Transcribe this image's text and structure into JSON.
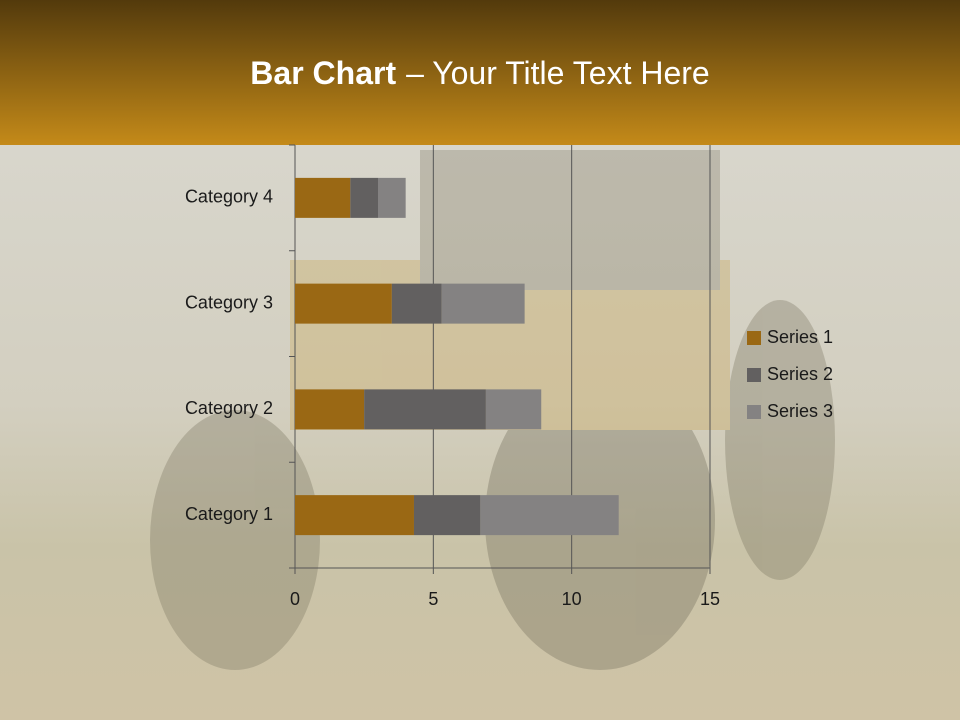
{
  "chart_data": {
    "type": "stacked_barh",
    "title": "Bar Chart",
    "subtitle": "– Your Title Text Here",
    "categories": [
      "Category 1",
      "Category 2",
      "Category 3",
      "Category 4"
    ],
    "series": [
      {
        "name": "Series 1",
        "color": "#9a6814",
        "values": [
          4.3,
          2.5,
          3.5,
          2
        ]
      },
      {
        "name": "Series 2",
        "color": "#626060",
        "values": [
          2.4,
          4.4,
          1.8,
          1
        ]
      },
      {
        "name": "Series 3",
        "color": "#848282",
        "values": [
          5,
          2,
          3,
          1
        ]
      }
    ],
    "xlim": [
      0,
      15
    ],
    "xticks": [
      0,
      5,
      10,
      15
    ],
    "grid": true,
    "legend": "right"
  }
}
